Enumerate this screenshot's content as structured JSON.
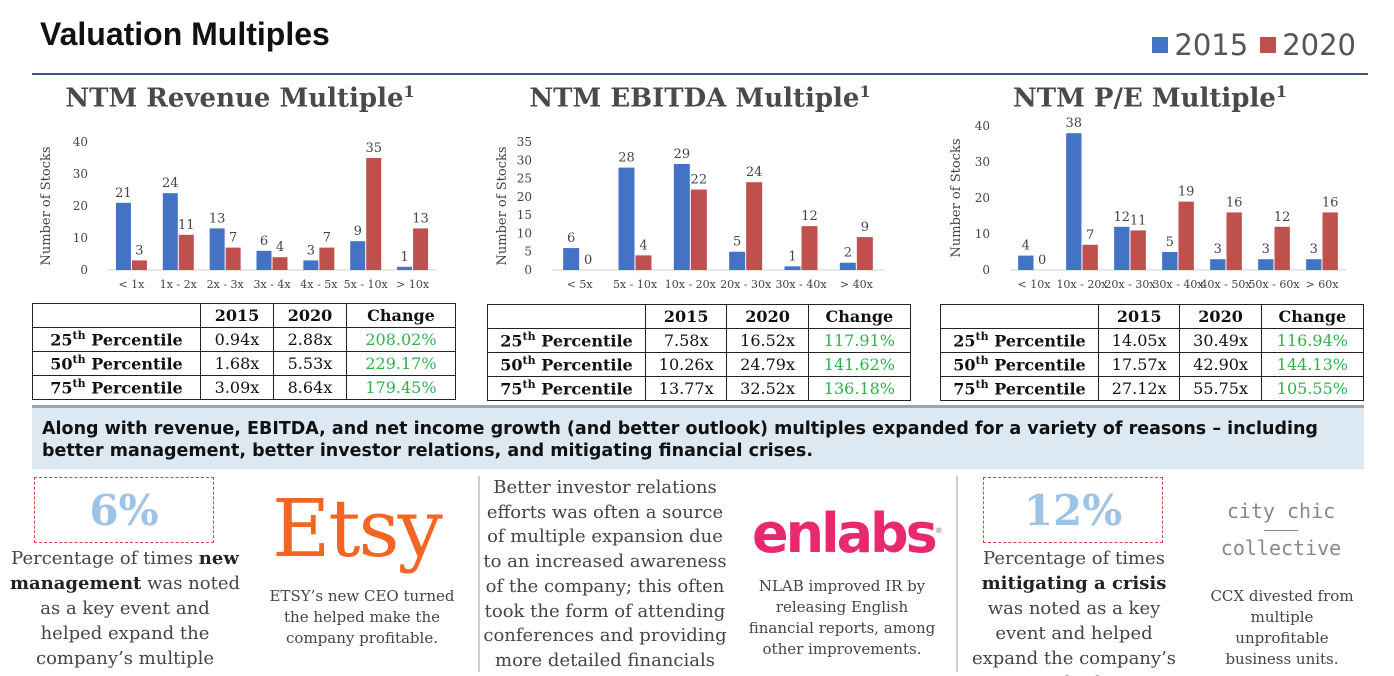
{
  "title": "Valuation Multiples",
  "legend": {
    "items": [
      {
        "label": "2015",
        "color": "#4472c4"
      },
      {
        "label": "2020",
        "color": "#c0504d"
      }
    ]
  },
  "chart_data": [
    {
      "type": "bar",
      "title": "NTM Revenue Multiple",
      "title_sup": "1",
      "ylabel": "Number of Stocks",
      "ylim": [
        0,
        40
      ],
      "yticks": [
        0,
        10,
        20,
        30,
        40
      ],
      "categories": [
        "< 1x",
        "1x - 2x",
        "2x - 3x",
        "3x - 4x",
        "4x - 5x",
        "5x - 10x",
        "> 10x"
      ],
      "series": [
        {
          "name": "2015",
          "values": [
            21,
            24,
            13,
            6,
            3,
            9,
            1
          ]
        },
        {
          "name": "2020",
          "values": [
            3,
            11,
            7,
            4,
            7,
            35,
            13
          ]
        }
      ]
    },
    {
      "type": "bar",
      "title": "NTM EBITDA Multiple",
      "title_sup": "1",
      "ylabel": "Number of Stocks",
      "ylim": [
        0,
        35
      ],
      "yticks": [
        0,
        5,
        10,
        15,
        20,
        25,
        30,
        35
      ],
      "categories": [
        "< 5x",
        "5x - 10x",
        "10x - 20x",
        "20x - 30x",
        "30x - 40x",
        "> 40x"
      ],
      "series": [
        {
          "name": "2015",
          "values": [
            6,
            28,
            29,
            5,
            1,
            2
          ]
        },
        {
          "name": "2020",
          "values": [
            0,
            4,
            22,
            24,
            12,
            9
          ]
        }
      ]
    },
    {
      "type": "bar",
      "title": "NTM P/E Multiple",
      "title_sup": "1",
      "ylabel": "Number of Stocks",
      "ylim": [
        0,
        40
      ],
      "yticks": [
        0,
        10,
        20,
        30,
        40
      ],
      "categories": [
        "< 10x",
        "10x - 20x",
        "20x - 30x",
        "30x - 40x",
        "40x - 50x",
        "50x - 60x",
        "> 60x"
      ],
      "series": [
        {
          "name": "2015",
          "values": [
            4,
            38,
            12,
            5,
            3,
            3,
            3
          ]
        },
        {
          "name": "2020",
          "values": [
            0,
            7,
            11,
            19,
            16,
            12,
            16
          ]
        }
      ]
    }
  ],
  "tables": [
    {
      "headers": [
        "",
        "2015",
        "2020",
        "Change"
      ],
      "rows": [
        {
          "pct": "25",
          "suffix": "th",
          "label": " Percentile",
          "v2015": "0.94x",
          "v2020": "2.88x",
          "change": "208.02%"
        },
        {
          "pct": "50",
          "suffix": "th",
          "label": " Percentile",
          "v2015": "1.68x",
          "v2020": "5.53x",
          "change": "229.17%"
        },
        {
          "pct": "75",
          "suffix": "th",
          "label": " Percentile",
          "v2015": "3.09x",
          "v2020": "8.64x",
          "change": "179.45%"
        }
      ]
    },
    {
      "headers": [
        "",
        "2015",
        "2020",
        "Change"
      ],
      "rows": [
        {
          "pct": "25",
          "suffix": "th",
          "label": " Percentile",
          "v2015": "7.58x",
          "v2020": "16.52x",
          "change": "117.91%"
        },
        {
          "pct": "50",
          "suffix": "th",
          "label": " Percentile",
          "v2015": "10.26x",
          "v2020": "24.79x",
          "change": "141.62%"
        },
        {
          "pct": "75",
          "suffix": "th",
          "label": " Percentile",
          "v2015": "13.77x",
          "v2020": "32.52x",
          "change": "136.18%"
        }
      ]
    },
    {
      "headers": [
        "",
        "2015",
        "2020",
        "Change"
      ],
      "rows": [
        {
          "pct": "25",
          "suffix": "th",
          "label": " Percentile",
          "v2015": "14.05x",
          "v2020": "30.49x",
          "change": "116.94%"
        },
        {
          "pct": "50",
          "suffix": "th",
          "label": " Percentile",
          "v2015": "17.57x",
          "v2020": "42.90x",
          "change": "144.13%"
        },
        {
          "pct": "75",
          "suffix": "th",
          "label": " Percentile",
          "v2015": "27.12x",
          "v2020": "55.75x",
          "change": "105.55%"
        }
      ]
    }
  ],
  "banner": "Along with revenue, EBITDA, and net income growth (and better outlook) multiples expanded for a variety of reasons – including better management, better investor relations, and mitigating financial crises.",
  "bottom": {
    "stat1": {
      "value": "6%",
      "pre": "Percentage of times ",
      "bold": "new management",
      "post": " was noted as a key event and helped expand the company’s multiple"
    },
    "etsy": {
      "logo": "Etsy",
      "caption": "ETSY’s new CEO turned the helped make the company profitable."
    },
    "middle_text": "Better investor relations efforts was often a source of multiple expansion due to an increased awareness of the company; this often took the form of attending conferences and providing more detailed financials",
    "enlabs": {
      "logo": "enlabs",
      "mark": "®",
      "caption": "NLAB improved IR by releasing English financial reports, among other improvements."
    },
    "stat2": {
      "value": "12%",
      "pre": "Percentage of times ",
      "bold": "mitigating a crisis",
      "post": " was noted as a key event and helped expand the company’s multiple"
    },
    "cityChic": {
      "logo_line1": "city chic",
      "logo_line2": "collective",
      "caption": "CCX divested from multiple unprofitable business units."
    }
  }
}
